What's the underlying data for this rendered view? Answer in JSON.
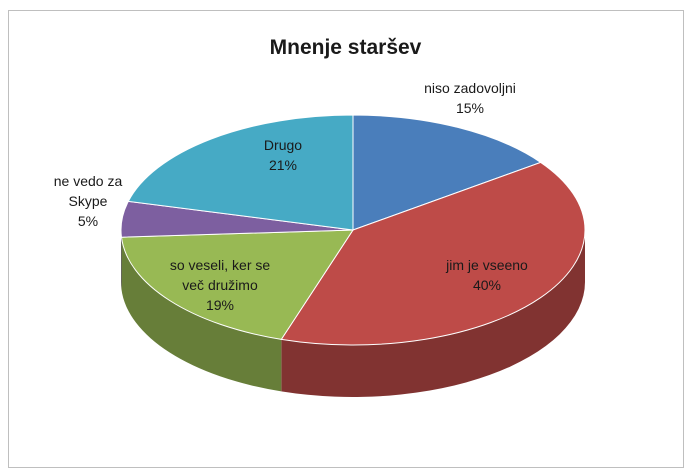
{
  "chart_data": {
    "type": "pie",
    "title": "Mnenje staršev",
    "slices": [
      {
        "label": [
          "niso zadovoljni"
        ],
        "value": 15,
        "percent_label": "15%",
        "color": "#4a7ebb"
      },
      {
        "label": [
          "jim je vseeno"
        ],
        "value": 40,
        "percent_label": "40%",
        "color": "#be4b48"
      },
      {
        "label": [
          "so veseli, ker se",
          "več družimo"
        ],
        "value": 19,
        "percent_label": "19%",
        "color": "#98b954"
      },
      {
        "label": [
          "ne vedo za",
          "Skype"
        ],
        "value": 5,
        "percent_label": "5%",
        "color": "#7d5fa0"
      },
      {
        "label": [
          "Drugo"
        ],
        "value": 21,
        "percent_label": "21%",
        "color": "#46aac5"
      }
    ],
    "style": "3d-tilted",
    "legend": "none"
  }
}
